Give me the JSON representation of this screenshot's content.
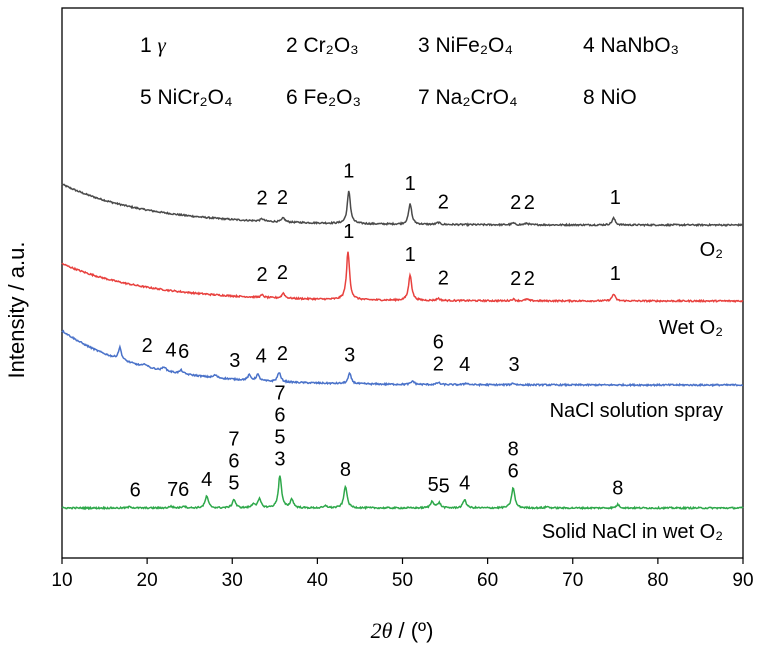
{
  "chart_data": {
    "type": "line",
    "xlabel_italic": "2θ",
    "xlabel_unit": " / (º)",
    "ylabel": "Intensity / a.u.",
    "xlim": [
      10,
      90
    ],
    "xticks": [
      10,
      20,
      30,
      40,
      50,
      60,
      70,
      80,
      90
    ],
    "yticks_shown": false,
    "legend": {
      "position": "top",
      "entries": [
        {
          "num": "1",
          "name": "γ"
        },
        {
          "num": "2",
          "name": "Cr₂O₃"
        },
        {
          "num": "3",
          "name": "NiFe₂O₄"
        },
        {
          "num": "4",
          "name": "NaNbO₃"
        },
        {
          "num": "5",
          "name": "NiCr₂O₄"
        },
        {
          "num": "6",
          "name": "Fe₂O₃"
        },
        {
          "num": "7",
          "name": "Na₂CrO₄"
        },
        {
          "num": "8",
          "name": "NiO"
        }
      ]
    },
    "series": [
      {
        "name": "O₂",
        "color": "#4a4a4a",
        "baseline": {
          "start": 12.0,
          "end": 0.0,
          "decay": 10
        },
        "peaks": [
          [
            33.5,
            0.7
          ],
          [
            36.0,
            1.2
          ],
          [
            43.7,
            9.5
          ],
          [
            50.9,
            6.0
          ],
          [
            54.2,
            0.6
          ],
          [
            63.0,
            0.5
          ],
          [
            64.6,
            0.5
          ],
          [
            74.8,
            2.0
          ]
        ],
        "peak_labels": [
          {
            "x": 33.5,
            "text": "2"
          },
          {
            "x": 35.9,
            "text": "2"
          },
          {
            "x": 43.7,
            "text": "1"
          },
          {
            "x": 50.9,
            "text": "1"
          },
          {
            "x": 54.8,
            "text": "2"
          },
          {
            "x": 63.3,
            "text": "2"
          },
          {
            "x": 64.9,
            "text": "2"
          },
          {
            "x": 75.0,
            "text": "1"
          }
        ]
      },
      {
        "name": "Wet O₂",
        "color": "#e8413e",
        "baseline": {
          "start": 11.0,
          "end": 0.0,
          "decay": 10
        },
        "peaks": [
          [
            33.5,
            0.7
          ],
          [
            36.0,
            1.5
          ],
          [
            43.6,
            14.0
          ],
          [
            50.9,
            7.5
          ],
          [
            54.2,
            0.6
          ],
          [
            63.0,
            0.5
          ],
          [
            64.6,
            0.5
          ],
          [
            74.8,
            2.0
          ]
        ],
        "peak_labels": [
          {
            "x": 33.5,
            "text": "2"
          },
          {
            "x": 35.9,
            "text": "2"
          },
          {
            "x": 43.7,
            "text": "1"
          },
          {
            "x": 50.9,
            "text": "1"
          },
          {
            "x": 54.8,
            "text": "2"
          },
          {
            "x": 63.3,
            "text": "2"
          },
          {
            "x": 64.9,
            "text": "2"
          },
          {
            "x": 75.0,
            "text": "1"
          }
        ]
      },
      {
        "name": "NaCl solution spray",
        "color": "#4a72c9",
        "baseline": {
          "start": 16.0,
          "end": 0.0,
          "decay": 9
        },
        "peaks": [
          [
            16.8,
            3.5
          ],
          [
            19.8,
            0.8
          ],
          [
            22.0,
            1.2
          ],
          [
            24.0,
            1.0
          ],
          [
            28.0,
            0.8
          ],
          [
            32.0,
            1.5
          ],
          [
            33.0,
            1.8
          ],
          [
            35.5,
            2.8
          ],
          [
            43.8,
            3.0
          ],
          [
            51.2,
            1.0
          ],
          [
            54.2,
            0.6
          ],
          [
            57.5,
            0.5
          ],
          [
            63.0,
            0.5
          ]
        ],
        "peak_labels": [
          {
            "x": 20.0,
            "text": "2",
            "row": 0
          },
          {
            "x": 22.8,
            "text": "4",
            "row": 0
          },
          {
            "x": 24.3,
            "text": "6",
            "row": 0
          },
          {
            "x": 30.3,
            "text": "3",
            "row": 0
          },
          {
            "x": 33.4,
            "text": "4",
            "row": 0
          },
          {
            "x": 35.9,
            "text": "2",
            "row": 0
          },
          {
            "x": 43.8,
            "text": "3",
            "row": 0
          },
          {
            "x": 54.2,
            "text": "2",
            "row": 0
          },
          {
            "x": 54.2,
            "text": "6",
            "row": 1
          },
          {
            "x": 57.3,
            "text": "4",
            "row": 0
          },
          {
            "x": 63.1,
            "text": "3",
            "row": 0
          }
        ]
      },
      {
        "name": "Solid NaCl in wet O₂",
        "color": "#2ea84a",
        "baseline": {
          "start": 0.0,
          "end": 0.0,
          "decay": 10
        },
        "peaks": [
          [
            18.0,
            0.4
          ],
          [
            22.8,
            0.5
          ],
          [
            24.3,
            0.6
          ],
          [
            27.0,
            3.5
          ],
          [
            30.2,
            2.5
          ],
          [
            32.5,
            1.2
          ],
          [
            33.2,
            2.5
          ],
          [
            35.6,
            9.5
          ],
          [
            37.0,
            2.5
          ],
          [
            41.0,
            0.6
          ],
          [
            43.3,
            6.5
          ],
          [
            53.5,
            2.0
          ],
          [
            54.3,
            1.5
          ],
          [
            57.3,
            2.5
          ],
          [
            63.0,
            6.0
          ],
          [
            67.0,
            0.4
          ],
          [
            75.3,
            1.0
          ]
        ],
        "peak_labels": [
          {
            "x": 18.6,
            "text": "6",
            "row": 0
          },
          {
            "x": 23.0,
            "text": "7",
            "row": 0
          },
          {
            "x": 24.3,
            "text": "6",
            "row": 0
          },
          {
            "x": 27.0,
            "text": "4",
            "row": 0
          },
          {
            "x": 30.2,
            "text": "5",
            "row": 0
          },
          {
            "x": 30.2,
            "text": "6",
            "row": 1
          },
          {
            "x": 30.2,
            "text": "7",
            "row": 2
          },
          {
            "x": 35.6,
            "text": "3",
            "row": 0
          },
          {
            "x": 35.6,
            "text": "5",
            "row": 1
          },
          {
            "x": 35.6,
            "text": "6",
            "row": 2
          },
          {
            "x": 35.6,
            "text": "7",
            "row": 3
          },
          {
            "x": 43.3,
            "text": "8",
            "row": 0
          },
          {
            "x": 53.6,
            "text": "5",
            "row": 0
          },
          {
            "x": 54.9,
            "text": "5",
            "row": 0
          },
          {
            "x": 57.3,
            "text": "4",
            "row": 0
          },
          {
            "x": 63.0,
            "text": "6",
            "row": 0
          },
          {
            "x": 63.0,
            "text": "8",
            "row": 1
          },
          {
            "x": 75.3,
            "text": "8",
            "row": 0
          }
        ]
      }
    ]
  }
}
